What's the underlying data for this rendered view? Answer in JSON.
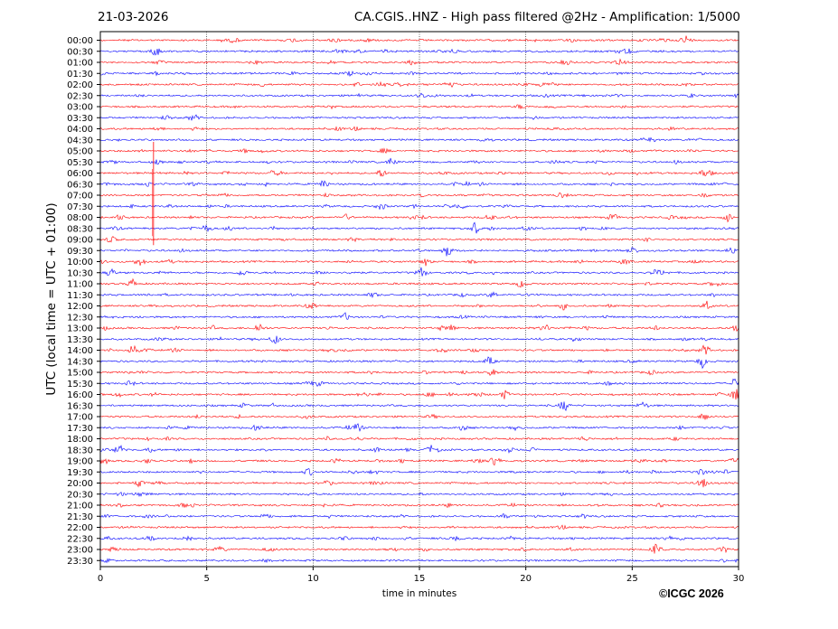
{
  "header": {
    "date": "21-03-2026",
    "title": "CA.CGIS..HNZ - High pass filtered @2Hz - Amplification: 1/5000"
  },
  "copyright": "©ICGC 2026",
  "chart_data": {
    "type": "line",
    "title": "CA.CGIS..HNZ - High pass filtered @2Hz - Amplification: 1/5000",
    "xlabel": "time in minutes",
    "ylabel": "UTC (local time = UTC + 01:00)",
    "xlim": [
      0,
      30
    ],
    "xticks": [
      "0",
      "5",
      "10",
      "15",
      "20",
      "25",
      "30"
    ],
    "xgrid": "dotted vertical lines at each 5 minutes",
    "rows": [
      "00:00",
      "00:30",
      "01:00",
      "01:30",
      "02:00",
      "02:30",
      "03:00",
      "03:30",
      "04:00",
      "04:30",
      "05:00",
      "05:30",
      "06:00",
      "06:30",
      "07:00",
      "07:30",
      "08:00",
      "08:30",
      "09:00",
      "09:30",
      "10:00",
      "10:30",
      "11:00",
      "11:30",
      "12:00",
      "12:30",
      "13:00",
      "13:30",
      "14:00",
      "14:30",
      "15:00",
      "15:30",
      "16:00",
      "16:30",
      "17:00",
      "17:30",
      "18:00",
      "18:30",
      "19:00",
      "19:30",
      "20:00",
      "20:30",
      "21:00",
      "21:30",
      "22:00",
      "22:30",
      "23:00",
      "23:30"
    ],
    "colors": [
      "#ff0000",
      "#0000ff"
    ],
    "events": [
      {
        "row": "00:00",
        "minute": 27.5,
        "amp": 0.5
      },
      {
        "row": "00:30",
        "minute": 2.6,
        "amp": 0.7
      },
      {
        "row": "05:30",
        "minute": 13.7,
        "amp": 0.45
      },
      {
        "row": "06:00",
        "minute": 13.2,
        "amp": 0.4
      },
      {
        "row": "06:00",
        "minute": 28.4,
        "amp": 0.45
      },
      {
        "row": "06:30",
        "minute": 10.5,
        "amp": 0.35
      },
      {
        "row": "07:30",
        "minute": 13.2,
        "amp": 0.35
      },
      {
        "row": "08:00",
        "minute": 18.3,
        "amp": 0.35
      },
      {
        "row": "08:00",
        "minute": 29.5,
        "amp": 0.4
      },
      {
        "row": "08:30",
        "minute": 17.6,
        "amp": 0.55
      },
      {
        "row": "09:00",
        "minute": 0.5,
        "amp": 0.4
      },
      {
        "row": "09:30",
        "minute": 16.3,
        "amp": 0.55
      },
      {
        "row": "09:30",
        "minute": 25.0,
        "amp": 0.4
      },
      {
        "row": "10:00",
        "minute": 15.3,
        "amp": 0.35
      },
      {
        "row": "10:30",
        "minute": 15.1,
        "amp": 0.55
      },
      {
        "row": "10:30",
        "minute": 0.5,
        "amp": 0.35
      },
      {
        "row": "11:00",
        "minute": 1.5,
        "amp": 0.45
      },
      {
        "row": "11:00",
        "minute": 19.8,
        "amp": 0.4
      },
      {
        "row": "12:00",
        "minute": 9.9,
        "amp": 0.35
      },
      {
        "row": "12:00",
        "minute": 21.8,
        "amp": 0.35
      },
      {
        "row": "12:00",
        "minute": 28.5,
        "amp": 0.4
      },
      {
        "row": "12:30",
        "minute": 11.5,
        "amp": 0.35
      },
      {
        "row": "13:00",
        "minute": 7.5,
        "amp": 0.4
      },
      {
        "row": "13:00",
        "minute": 16.5,
        "amp": 0.35
      },
      {
        "row": "13:00",
        "minute": 20.9,
        "amp": 0.35
      },
      {
        "row": "13:00",
        "minute": 29.9,
        "amp": 0.45
      },
      {
        "row": "13:30",
        "minute": 8.2,
        "amp": 0.4
      },
      {
        "row": "14:00",
        "minute": 1.5,
        "amp": 0.55
      },
      {
        "row": "14:00",
        "minute": 28.4,
        "amp": 0.4
      },
      {
        "row": "14:30",
        "minute": 18.3,
        "amp": 0.45
      },
      {
        "row": "14:30",
        "minute": 28.3,
        "amp": 0.55
      },
      {
        "row": "15:00",
        "minute": 18.4,
        "amp": 0.35
      },
      {
        "row": "15:30",
        "minute": 29.8,
        "amp": 0.55
      },
      {
        "row": "16:00",
        "minute": 19.0,
        "amp": 0.4
      },
      {
        "row": "16:00",
        "minute": 29.9,
        "amp": 0.5
      },
      {
        "row": "16:30",
        "minute": 21.8,
        "amp": 0.45
      },
      {
        "row": "17:00",
        "minute": 28.4,
        "amp": 0.4
      },
      {
        "row": "17:30",
        "minute": 7.4,
        "amp": 0.4
      },
      {
        "row": "17:30",
        "minute": 17.0,
        "amp": 0.35
      },
      {
        "row": "18:30",
        "minute": 0.9,
        "amp": 0.45
      },
      {
        "row": "18:30",
        "minute": 15.6,
        "amp": 0.35
      },
      {
        "row": "18:30",
        "minute": 19.2,
        "amp": 0.35
      },
      {
        "row": "19:00",
        "minute": 0.1,
        "amp": 0.55
      },
      {
        "row": "19:00",
        "minute": 18.5,
        "amp": 0.35
      },
      {
        "row": "19:00",
        "minute": 29.8,
        "amp": 0.4
      },
      {
        "row": "19:30",
        "minute": 9.8,
        "amp": 0.35
      },
      {
        "row": "19:30",
        "minute": 28.2,
        "amp": 0.35
      },
      {
        "row": "20:00",
        "minute": 28.3,
        "amp": 0.5
      },
      {
        "row": "20:00",
        "minute": 1.8,
        "amp": 0.3
      },
      {
        "row": "23:00",
        "minute": 26.1,
        "amp": 0.45
      }
    ],
    "annotation": {
      "type": "spike",
      "row_start": "05:00",
      "row_end": "09:30",
      "minute": 2.5
    }
  }
}
